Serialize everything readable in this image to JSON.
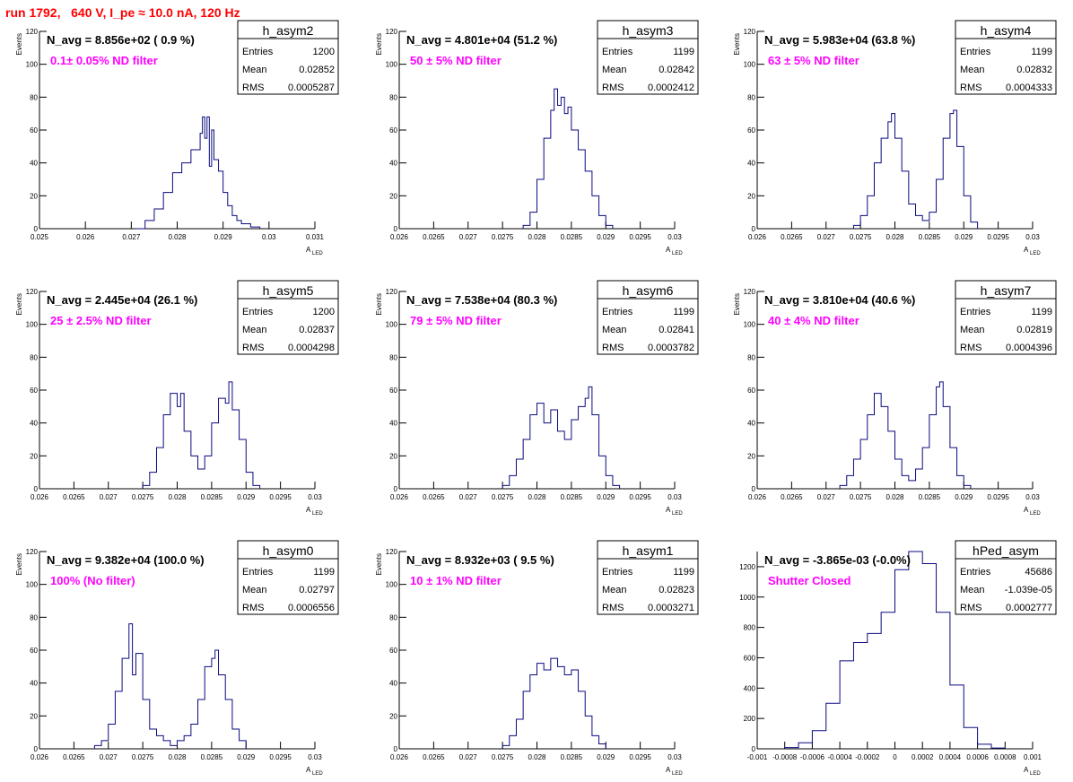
{
  "page_title": "run 1792,   640 V, I_pe ≈ 10.0 nA, 120 Hz",
  "colors": {
    "line": "#0a0a80",
    "annotation": "#ff00ff",
    "title": "#ff0000",
    "axis": "#000000"
  },
  "chart_data": [
    {
      "type": "histogram",
      "name": "h_asym2",
      "navg": "N_avg = 8.856e+02 ( 0.9 %)",
      "filter": "0.1± 0.05% ND filter",
      "stats": {
        "entries": "1200",
        "mean": "0.02852",
        "rms": "0.0005287"
      },
      "xlim": [
        0.025,
        0.031
      ],
      "ylim": [
        0,
        120
      ],
      "xticks": [
        0.025,
        0.026,
        0.027,
        0.028,
        0.029,
        0.03,
        0.031
      ],
      "xtick_labels": [
        "0.025",
        "0.026",
        "0.027",
        "0.028",
        "0.029",
        "0.03",
        "0.031"
      ],
      "yticks": [
        0,
        20,
        40,
        60,
        80,
        100,
        120
      ],
      "xlabel": "A",
      "xlabel_sub": "LED",
      "ylabel": "Events",
      "bins": [
        [
          0.0271,
          0
        ],
        [
          0.0273,
          5
        ],
        [
          0.0275,
          12
        ],
        [
          0.0277,
          22
        ],
        [
          0.0279,
          34
        ],
        [
          0.0281,
          40
        ],
        [
          0.0283,
          48
        ],
        [
          0.0285,
          58
        ],
        [
          0.02855,
          68
        ],
        [
          0.0286,
          55
        ],
        [
          0.02865,
          68
        ],
        [
          0.0287,
          38
        ],
        [
          0.02875,
          60
        ],
        [
          0.0288,
          42
        ],
        [
          0.0289,
          35
        ],
        [
          0.029,
          22
        ],
        [
          0.0291,
          14
        ],
        [
          0.0292,
          8
        ],
        [
          0.0293,
          5
        ],
        [
          0.0294,
          3
        ],
        [
          0.0296,
          1
        ],
        [
          0.0298,
          0
        ]
      ]
    },
    {
      "type": "histogram",
      "name": "h_asym3",
      "navg": "N_avg = 4.801e+04 (51.2 %)",
      "filter": "50 ± 5% ND filter",
      "stats": {
        "entries": "1199",
        "mean": "0.02842",
        "rms": "0.0002412"
      },
      "xlim": [
        0.026,
        0.03
      ],
      "ylim": [
        0,
        120
      ],
      "xticks": [
        0.026,
        0.0265,
        0.027,
        0.0275,
        0.028,
        0.0285,
        0.029,
        0.0295,
        0.03
      ],
      "xtick_labels": [
        "0.026",
        "0.0265",
        "0.027",
        "0.0275",
        "0.028",
        "0.0285",
        "0.029",
        "0.0295",
        "0.03"
      ],
      "yticks": [
        0,
        20,
        40,
        60,
        80,
        100,
        120
      ],
      "xlabel": "A",
      "xlabel_sub": "LED",
      "ylabel": "Events",
      "bins": [
        [
          0.0278,
          2
        ],
        [
          0.0279,
          10
        ],
        [
          0.028,
          30
        ],
        [
          0.0281,
          55
        ],
        [
          0.0282,
          72
        ],
        [
          0.02825,
          85
        ],
        [
          0.0283,
          75
        ],
        [
          0.02835,
          80
        ],
        [
          0.0284,
          70
        ],
        [
          0.02845,
          74
        ],
        [
          0.0285,
          60
        ],
        [
          0.0286,
          48
        ],
        [
          0.0287,
          35
        ],
        [
          0.0288,
          20
        ],
        [
          0.0289,
          8
        ],
        [
          0.029,
          2
        ],
        [
          0.0291,
          0
        ]
      ]
    },
    {
      "type": "histogram",
      "name": "h_asym4",
      "navg": "N_avg = 5.983e+04 (63.8 %)",
      "filter": "63 ± 5% ND filter",
      "stats": {
        "entries": "1199",
        "mean": "0.02832",
        "rms": "0.0004333"
      },
      "xlim": [
        0.026,
        0.03
      ],
      "ylim": [
        0,
        120
      ],
      "xticks": [
        0.026,
        0.0265,
        0.027,
        0.0275,
        0.028,
        0.0285,
        0.029,
        0.0295,
        0.03
      ],
      "xtick_labels": [
        "0.026",
        "0.0265",
        "0.027",
        "0.0275",
        "0.028",
        "0.0285",
        "0.029",
        "0.0295",
        "0.03"
      ],
      "yticks": [
        0,
        20,
        40,
        60,
        80,
        100,
        120
      ],
      "xlabel": "A",
      "xlabel_sub": "LED",
      "ylabel": "Events",
      "bins": [
        [
          0.0274,
          2
        ],
        [
          0.0275,
          8
        ],
        [
          0.0276,
          20
        ],
        [
          0.0277,
          40
        ],
        [
          0.0278,
          55
        ],
        [
          0.0279,
          65
        ],
        [
          0.02795,
          70
        ],
        [
          0.028,
          55
        ],
        [
          0.0281,
          35
        ],
        [
          0.0282,
          15
        ],
        [
          0.0283,
          8
        ],
        [
          0.0284,
          5
        ],
        [
          0.0285,
          10
        ],
        [
          0.0286,
          30
        ],
        [
          0.0287,
          55
        ],
        [
          0.0288,
          70
        ],
        [
          0.02885,
          72
        ],
        [
          0.0289,
          50
        ],
        [
          0.029,
          20
        ],
        [
          0.0291,
          4
        ],
        [
          0.0292,
          0
        ]
      ]
    },
    {
      "type": "histogram",
      "name": "h_asym5",
      "navg": "N_avg = 2.445e+04 (26.1 %)",
      "filter": "25 ± 2.5% ND filter",
      "stats": {
        "entries": "1200",
        "mean": "0.02837",
        "rms": "0.0004298"
      },
      "xlim": [
        0.026,
        0.03
      ],
      "ylim": [
        0,
        120
      ],
      "xticks": [
        0.026,
        0.0265,
        0.027,
        0.0275,
        0.028,
        0.0285,
        0.029,
        0.0295,
        0.03
      ],
      "xtick_labels": [
        "0.026",
        "0.0265",
        "0.027",
        "0.0275",
        "0.028",
        "0.0285",
        "0.029",
        "0.0295",
        "0.03"
      ],
      "yticks": [
        0,
        20,
        40,
        60,
        80,
        100,
        120
      ],
      "xlabel": "A",
      "xlabel_sub": "LED",
      "ylabel": "Events",
      "bins": [
        [
          0.0275,
          2
        ],
        [
          0.0276,
          10
        ],
        [
          0.0277,
          25
        ],
        [
          0.0278,
          45
        ],
        [
          0.0279,
          58
        ],
        [
          0.028,
          50
        ],
        [
          0.02805,
          58
        ],
        [
          0.0281,
          35
        ],
        [
          0.0282,
          20
        ],
        [
          0.0283,
          12
        ],
        [
          0.0284,
          20
        ],
        [
          0.0285,
          40
        ],
        [
          0.0286,
          55
        ],
        [
          0.0287,
          52
        ],
        [
          0.02875,
          65
        ],
        [
          0.0288,
          48
        ],
        [
          0.0289,
          30
        ],
        [
          0.029,
          10
        ],
        [
          0.0291,
          2
        ],
        [
          0.0292,
          0
        ]
      ]
    },
    {
      "type": "histogram",
      "name": "h_asym6",
      "navg": "N_avg = 7.538e+04 (80.3 %)",
      "filter": "79 ± 5% ND filter",
      "stats": {
        "entries": "1199",
        "mean": "0.02841",
        "rms": "0.0003782"
      },
      "xlim": [
        0.026,
        0.03
      ],
      "ylim": [
        0,
        120
      ],
      "xticks": [
        0.026,
        0.0265,
        0.027,
        0.0275,
        0.028,
        0.0285,
        0.029,
        0.0295,
        0.03
      ],
      "xtick_labels": [
        "0.026",
        "0.0265",
        "0.027",
        "0.0275",
        "0.028",
        "0.0285",
        "0.029",
        "0.0295",
        "0.03"
      ],
      "yticks": [
        0,
        20,
        40,
        60,
        80,
        100,
        120
      ],
      "xlabel": "A",
      "xlabel_sub": "LED",
      "ylabel": "Events",
      "bins": [
        [
          0.0275,
          2
        ],
        [
          0.0276,
          8
        ],
        [
          0.0277,
          18
        ],
        [
          0.0278,
          30
        ],
        [
          0.0279,
          45
        ],
        [
          0.028,
          52
        ],
        [
          0.0281,
          40
        ],
        [
          0.0282,
          48
        ],
        [
          0.0283,
          35
        ],
        [
          0.0284,
          30
        ],
        [
          0.0285,
          42
        ],
        [
          0.0286,
          50
        ],
        [
          0.0287,
          55
        ],
        [
          0.02875,
          62
        ],
        [
          0.0288,
          45
        ],
        [
          0.0289,
          20
        ],
        [
          0.029,
          8
        ],
        [
          0.0291,
          2
        ],
        [
          0.0292,
          0
        ]
      ]
    },
    {
      "type": "histogram",
      "name": "h_asym7",
      "navg": "N_avg = 3.810e+04 (40.6 %)",
      "filter": "40 ± 4% ND filter",
      "stats": {
        "entries": "1199",
        "mean": "0.02819",
        "rms": "0.0004396"
      },
      "xlim": [
        0.026,
        0.03
      ],
      "ylim": [
        0,
        120
      ],
      "xticks": [
        0.026,
        0.0265,
        0.027,
        0.0275,
        0.028,
        0.0285,
        0.029,
        0.0295,
        0.03
      ],
      "xtick_labels": [
        "0.026",
        "0.0265",
        "0.027",
        "0.0275",
        "0.028",
        "0.0285",
        "0.029",
        "0.0295",
        "0.03"
      ],
      "yticks": [
        0,
        20,
        40,
        60,
        80,
        100,
        120
      ],
      "xlabel": "A",
      "xlabel_sub": "LED",
      "ylabel": "Events",
      "bins": [
        [
          0.0272,
          2
        ],
        [
          0.0273,
          8
        ],
        [
          0.0274,
          18
        ],
        [
          0.0275,
          30
        ],
        [
          0.0276,
          45
        ],
        [
          0.0277,
          58
        ],
        [
          0.0278,
          50
        ],
        [
          0.0279,
          35
        ],
        [
          0.028,
          18
        ],
        [
          0.0281,
          8
        ],
        [
          0.0282,
          5
        ],
        [
          0.0283,
          12
        ],
        [
          0.0284,
          25
        ],
        [
          0.0285,
          45
        ],
        [
          0.0286,
          62
        ],
        [
          0.02865,
          65
        ],
        [
          0.0287,
          50
        ],
        [
          0.0288,
          25
        ],
        [
          0.0289,
          8
        ],
        [
          0.029,
          2
        ],
        [
          0.0291,
          0
        ]
      ]
    },
    {
      "type": "histogram",
      "name": "h_asym0",
      "navg": "N_avg = 9.382e+04 (100.0 %)",
      "filter": "100% (No filter)",
      "stats": {
        "entries": "1199",
        "mean": "0.02797",
        "rms": "0.0006556"
      },
      "xlim": [
        0.026,
        0.03
      ],
      "ylim": [
        0,
        120
      ],
      "xticks": [
        0.026,
        0.0265,
        0.027,
        0.0275,
        0.028,
        0.0285,
        0.029,
        0.0295,
        0.03
      ],
      "xtick_labels": [
        "0.026",
        "0.0265",
        "0.027",
        "0.0275",
        "0.028",
        "0.0285",
        "0.029",
        "0.0295",
        "0.03"
      ],
      "yticks": [
        0,
        20,
        40,
        60,
        80,
        100,
        120
      ],
      "xlabel": "A",
      "xlabel_sub": "LED",
      "ylabel": "Events",
      "bins": [
        [
          0.0268,
          2
        ],
        [
          0.0269,
          5
        ],
        [
          0.027,
          15
        ],
        [
          0.0271,
          35
        ],
        [
          0.0272,
          55
        ],
        [
          0.0273,
          76
        ],
        [
          0.02735,
          45
        ],
        [
          0.0274,
          58
        ],
        [
          0.0275,
          30
        ],
        [
          0.0276,
          12
        ],
        [
          0.0277,
          8
        ],
        [
          0.0278,
          5
        ],
        [
          0.0279,
          2
        ],
        [
          0.028,
          5
        ],
        [
          0.0281,
          8
        ],
        [
          0.0282,
          15
        ],
        [
          0.0283,
          30
        ],
        [
          0.0284,
          50
        ],
        [
          0.0285,
          55
        ],
        [
          0.02855,
          60
        ],
        [
          0.0286,
          45
        ],
        [
          0.0287,
          30
        ],
        [
          0.0288,
          12
        ],
        [
          0.0289,
          5
        ],
        [
          0.029,
          0
        ]
      ]
    },
    {
      "type": "histogram",
      "name": "h_asym1",
      "navg": "N_avg = 8.932e+03 ( 9.5 %)",
      "filter": "10 ± 1% ND filter",
      "stats": {
        "entries": "1199",
        "mean": "0.02823",
        "rms": "0.0003271"
      },
      "xlim": [
        0.026,
        0.03
      ],
      "ylim": [
        0,
        120
      ],
      "xticks": [
        0.026,
        0.0265,
        0.027,
        0.0275,
        0.028,
        0.0285,
        0.029,
        0.0295,
        0.03
      ],
      "xtick_labels": [
        "0.026",
        "0.0265",
        "0.027",
        "0.0275",
        "0.028",
        "0.0285",
        "0.029",
        "0.0295",
        "0.03"
      ],
      "yticks": [
        0,
        20,
        40,
        60,
        80,
        100,
        120
      ],
      "xlabel": "A",
      "xlabel_sub": "LED",
      "ylabel": "Events",
      "bins": [
        [
          0.0275,
          2
        ],
        [
          0.0276,
          8
        ],
        [
          0.0277,
          18
        ],
        [
          0.0278,
          35
        ],
        [
          0.0279,
          45
        ],
        [
          0.028,
          52
        ],
        [
          0.0281,
          48
        ],
        [
          0.0282,
          55
        ],
        [
          0.0283,
          50
        ],
        [
          0.0284,
          45
        ],
        [
          0.0285,
          48
        ],
        [
          0.0286,
          35
        ],
        [
          0.0287,
          20
        ],
        [
          0.0288,
          8
        ],
        [
          0.0289,
          3
        ],
        [
          0.029,
          0
        ]
      ]
    },
    {
      "type": "histogram",
      "name": "hPed_asym",
      "navg": "N_avg = -3.865e-03 (-0.0%)",
      "filter": "Shutter Closed",
      "stats": {
        "entries": "45686",
        "mean": "-1.039e-05",
        "rms": "0.0002777"
      },
      "xlim": [
        -0.001,
        0.001
      ],
      "ylim": [
        0,
        1300
      ],
      "xticks": [
        -0.001,
        -0.0008,
        -0.0006,
        -0.0004,
        -0.0002,
        0,
        0.0002,
        0.0004,
        0.0006,
        0.0008,
        0.001
      ],
      "xtick_labels": [
        "-0.001",
        "-0.0008",
        "-0.0006",
        "-0.0004",
        "-0.0002",
        "0",
        "0.0002",
        "0.0004",
        "0.0006",
        "0.0008",
        "0.001"
      ],
      "yticks": [
        0,
        200,
        400,
        600,
        800,
        1000,
        1200
      ],
      "xlabel": "A",
      "xlabel_sub": "LED",
      "ylabel": "",
      "bins": [
        [
          -0.0008,
          8
        ],
        [
          -0.0007,
          40
        ],
        [
          -0.0006,
          120
        ],
        [
          -0.0005,
          300
        ],
        [
          -0.0004,
          580
        ],
        [
          -0.0003,
          700
        ],
        [
          -0.0002,
          760
        ],
        [
          -0.0001,
          900
        ],
        [
          0,
          1180
        ],
        [
          0.0001,
          1300
        ],
        [
          0.0002,
          1220
        ],
        [
          0.0003,
          900
        ],
        [
          0.0004,
          420
        ],
        [
          0.0005,
          140
        ],
        [
          0.0006,
          30
        ],
        [
          0.0007,
          5
        ],
        [
          0.0008,
          0
        ]
      ]
    }
  ]
}
